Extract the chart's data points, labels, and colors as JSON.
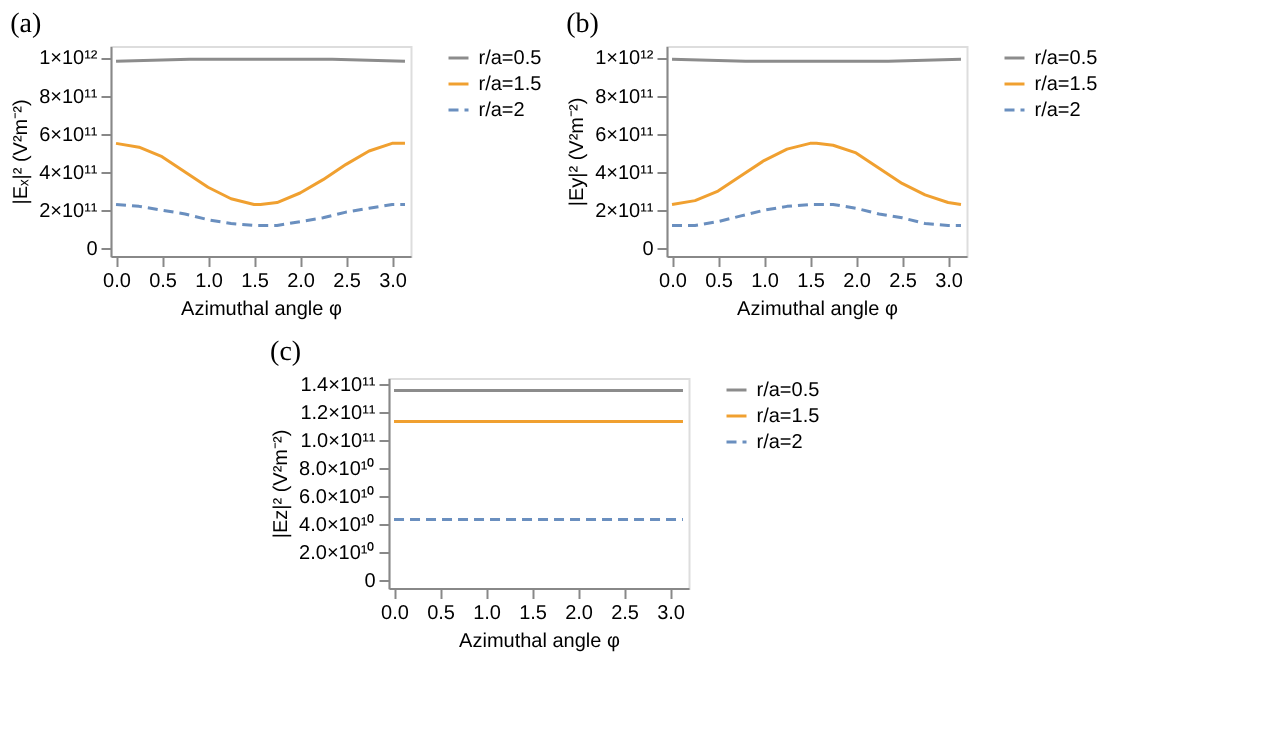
{
  "chart_data": [
    {
      "type": "line",
      "title": "(a)",
      "xlabel": "Azimuthal angle φ",
      "ylabel": "|Eₓ|² (V²m⁻²)",
      "legend": "right",
      "grid": false,
      "x": [
        0,
        0.25,
        0.5,
        0.75,
        1.0,
        1.25,
        1.5,
        1.57,
        1.75,
        2.0,
        2.25,
        2.5,
        2.75,
        3.0,
        3.14
      ],
      "xlim": [
        -0.06,
        3.2
      ],
      "xticks": [
        {
          "value": 0,
          "label": "0.0"
        },
        0.5,
        {
          "value": 1,
          "label": "1.0"
        },
        1.5,
        {
          "value": 2,
          "label": "2.0"
        },
        2.5,
        {
          "value": 3,
          "label": "3.0"
        }
      ],
      "ylim": [
        -40000000000.0,
        1060000000000.0
      ],
      "yticks": [
        0,
        {
          "value": 200000000000.0,
          "label": "2×10¹¹"
        },
        {
          "value": 400000000000.0,
          "label": "4×10¹¹"
        },
        {
          "value": 600000000000.0,
          "label": "6×10¹¹"
        },
        {
          "value": 800000000000.0,
          "label": "8×10¹¹"
        },
        {
          "value": 1000000000000.0,
          "label": "1×10¹²"
        }
      ],
      "series": [
        {
          "name": "r/a=0.5",
          "color": "#8c8c8c",
          "line_style": "solid",
          "x": [
            0,
            0.8,
            1.57,
            2.35,
            3.14
          ],
          "values": [
            980000000000.0,
            990000000000.0,
            990000000000.0,
            990000000000.0,
            980000000000.0
          ]
        },
        {
          "name": "r/a=1.5",
          "color": "#f0a030",
          "line_style": "solid",
          "values": [
            550000000000.0,
            530000000000.0,
            480000000000.0,
            400000000000.0,
            320000000000.0,
            260000000000.0,
            230000000000.0,
            230000000000.0,
            240000000000.0,
            290000000000.0,
            360000000000.0,
            440000000000.0,
            510000000000.0,
            550000000000.0,
            550000000000.0
          ]
        },
        {
          "name": "r/a=2",
          "color": "#6a8fbf",
          "line_style": "dashed",
          "values": [
            230000000000.0,
            220000000000.0,
            200000000000.0,
            180000000000.0,
            150000000000.0,
            130000000000.0,
            120000000000.0,
            120000000000.0,
            120000000000.0,
            140000000000.0,
            160000000000.0,
            190000000000.0,
            210000000000.0,
            230000000000.0,
            230000000000.0
          ]
        }
      ]
    },
    {
      "type": "line",
      "title": "(b)",
      "xlabel": "Azimuthal angle φ",
      "ylabel": "|Ey|² (V²m⁻²)",
      "legend": "right",
      "grid": false,
      "x": [
        0,
        0.25,
        0.5,
        0.75,
        1.0,
        1.25,
        1.5,
        1.57,
        1.75,
        2.0,
        2.25,
        2.5,
        2.75,
        3.0,
        3.14
      ],
      "xlim": [
        -0.06,
        3.2
      ],
      "xticks": [
        {
          "value": 0,
          "label": "0.0"
        },
        0.5,
        {
          "value": 1,
          "label": "1.0"
        },
        1.5,
        {
          "value": 2,
          "label": "2.0"
        },
        2.5,
        {
          "value": 3,
          "label": "3.0"
        }
      ],
      "ylim": [
        -40000000000.0,
        1060000000000.0
      ],
      "yticks": [
        0,
        {
          "value": 200000000000.0,
          "label": "2×10¹¹"
        },
        {
          "value": 400000000000.0,
          "label": "4×10¹¹"
        },
        {
          "value": 600000000000.0,
          "label": "6×10¹¹"
        },
        {
          "value": 800000000000.0,
          "label": "8×10¹¹"
        },
        {
          "value": 1000000000000.0,
          "label": "1×10¹²"
        }
      ],
      "series": [
        {
          "name": "r/a=0.5",
          "color": "#8c8c8c",
          "line_style": "solid",
          "x": [
            0,
            0.8,
            1.57,
            2.35,
            3.14
          ],
          "values": [
            990000000000.0,
            980000000000.0,
            980000000000.0,
            980000000000.0,
            990000000000.0
          ]
        },
        {
          "name": "r/a=1.5",
          "color": "#f0a030",
          "line_style": "solid",
          "values": [
            230000000000.0,
            250000000000.0,
            300000000000.0,
            380000000000.0,
            460000000000.0,
            520000000000.0,
            550000000000.0,
            550000000000.0,
            540000000000.0,
            500000000000.0,
            420000000000.0,
            340000000000.0,
            280000000000.0,
            240000000000.0,
            230000000000.0
          ]
        },
        {
          "name": "r/a=2",
          "color": "#6a8fbf",
          "line_style": "dashed",
          "values": [
            120000000000.0,
            120000000000.0,
            140000000000.0,
            170000000000.0,
            200000000000.0,
            220000000000.0,
            230000000000.0,
            230000000000.0,
            230000000000.0,
            210000000000.0,
            180000000000.0,
            160000000000.0,
            130000000000.0,
            120000000000.0,
            120000000000.0
          ]
        }
      ]
    },
    {
      "type": "line",
      "title": "(c)",
      "xlabel": "Azimuthal angle φ",
      "ylabel": "|Ez|² (V²m⁻²)",
      "legend": "right",
      "grid": false,
      "x": [
        0,
        3.14
      ],
      "xlim": [
        -0.06,
        3.2
      ],
      "xticks": [
        {
          "value": 0,
          "label": "0.0"
        },
        0.5,
        {
          "value": 1,
          "label": "1.0"
        },
        1.5,
        {
          "value": 2,
          "label": "2.0"
        },
        2.5,
        {
          "value": 3,
          "label": "3.0"
        }
      ],
      "ylim": [
        -6000000000.0,
        144000000000.0
      ],
      "yticks": [
        0,
        {
          "value": 20000000000.0,
          "label": "2.0×10¹⁰"
        },
        {
          "value": 40000000000.0,
          "label": "4.0×10¹⁰"
        },
        {
          "value": 60000000000.0,
          "label": "6.0×10¹⁰"
        },
        {
          "value": 80000000000.0,
          "label": "8.0×10¹⁰"
        },
        {
          "value": 100000000000.0,
          "label": "1.0×10¹¹"
        },
        {
          "value": 120000000000.0,
          "label": "1.2×10¹¹"
        },
        {
          "value": 140000000000.0,
          "label": "1.4×10¹¹"
        }
      ],
      "series": [
        {
          "name": "r/a=0.5",
          "color": "#8c8c8c",
          "line_style": "solid",
          "values": [
            135000000000.0,
            135000000000.0
          ]
        },
        {
          "name": "r/a=1.5",
          "color": "#f0a030",
          "line_style": "solid",
          "values": [
            113000000000.0,
            113000000000.0
          ]
        },
        {
          "name": "r/a=2",
          "color": "#6a8fbf",
          "line_style": "dashed",
          "values": [
            43000000000.0,
            43000000000.0
          ]
        }
      ]
    }
  ]
}
